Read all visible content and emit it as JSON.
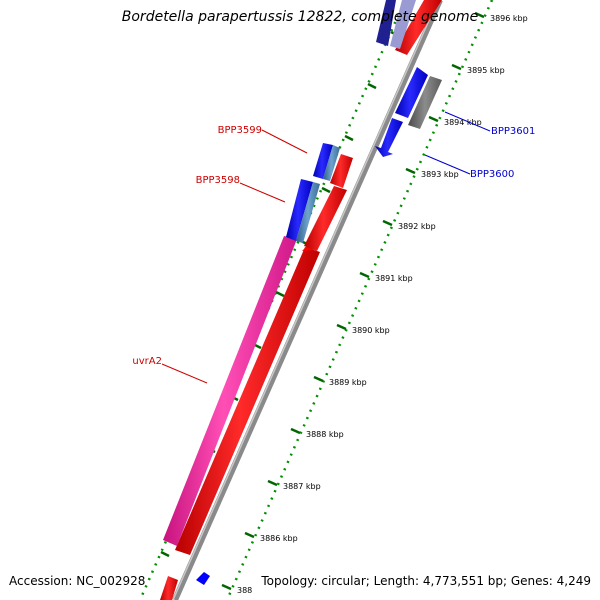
{
  "header": {
    "title": "Bordetella parapertussis 12822, complete genome"
  },
  "footer": {
    "accession": "Accession: NC_002928",
    "summary": "Topology: circular; Length: 4,773,551 bp; Genes: 4,249"
  },
  "ruler": {
    "tick_labels": [
      "3896 kbp",
      "3895 kbp",
      "3894 kbp",
      "3893 kbp",
      "3892 kbp",
      "3891 kbp",
      "3890 kbp",
      "3889 kbp",
      "3888 kbp",
      "3887 kbp",
      "3886 kbp",
      "388"
    ]
  },
  "genes": [
    {
      "label": "BPP3599",
      "strand": "reverse",
      "label_color": "#cc0000"
    },
    {
      "label": "BPP3598",
      "strand": "reverse",
      "label_color": "#cc0000"
    },
    {
      "label": "uvrA2",
      "strand": "reverse",
      "label_color": "#cc0000"
    },
    {
      "label": "BPP3601",
      "strand": "forward",
      "label_color": "#0000cc"
    },
    {
      "label": "BPP3600",
      "strand": "forward",
      "label_color": "#0000cc"
    }
  ],
  "colors": {
    "cds_red": "#ff0000",
    "cds_blue": "#0000ff",
    "gene_pink": "#ff33aa",
    "gene_steel": "#4682b4",
    "gene_gray": "#777777",
    "backbone": "#999999",
    "ruler_dots": "#008800",
    "ruler_ticks": "#006600"
  }
}
